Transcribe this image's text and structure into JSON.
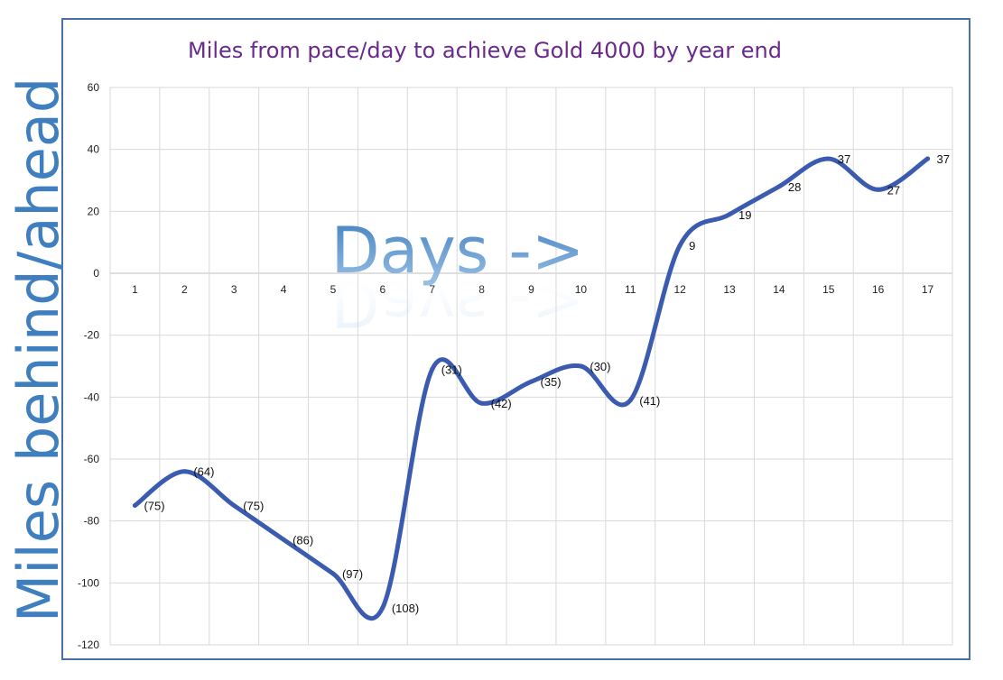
{
  "chart_data": {
    "type": "line",
    "title": "Miles from pace/day to achieve Gold 4000 by year end",
    "xlabel": "Days ->",
    "ylabel": "Miles behind/ahead",
    "categories": [
      "1",
      "2",
      "3",
      "4",
      "5",
      "6",
      "7",
      "8",
      "9",
      "10",
      "11",
      "12",
      "13",
      "14",
      "15",
      "16",
      "17"
    ],
    "series": [
      {
        "values": [
          -75,
          -64,
          -75,
          -86,
          -97,
          -108,
          -31,
          -42,
          -35,
          -30,
          -41,
          9,
          19,
          28,
          37,
          27,
          37
        ],
        "labels": [
          "(75)",
          "(64)",
          "(75)",
          "(86)",
          "(97)",
          "(108)",
          "(31)",
          "(42)",
          "(35)",
          "(30)",
          "(41)",
          "9",
          "19",
          "28",
          "37",
          "27",
          "37"
        ]
      }
    ],
    "ylim": [
      -120,
      60
    ],
    "yticks": [
      "60",
      "40",
      "20",
      "0",
      "-20",
      "-40",
      "-60",
      "-80",
      "-100",
      "-120"
    ],
    "grid": true,
    "smooth": true,
    "legend": "none"
  },
  "colors": {
    "title": "#6a2a8c",
    "line": "#3a5bb0",
    "axis_title": "#3f7fc0",
    "frame": "#4a6fa5",
    "grid": "#d9d9d9"
  }
}
